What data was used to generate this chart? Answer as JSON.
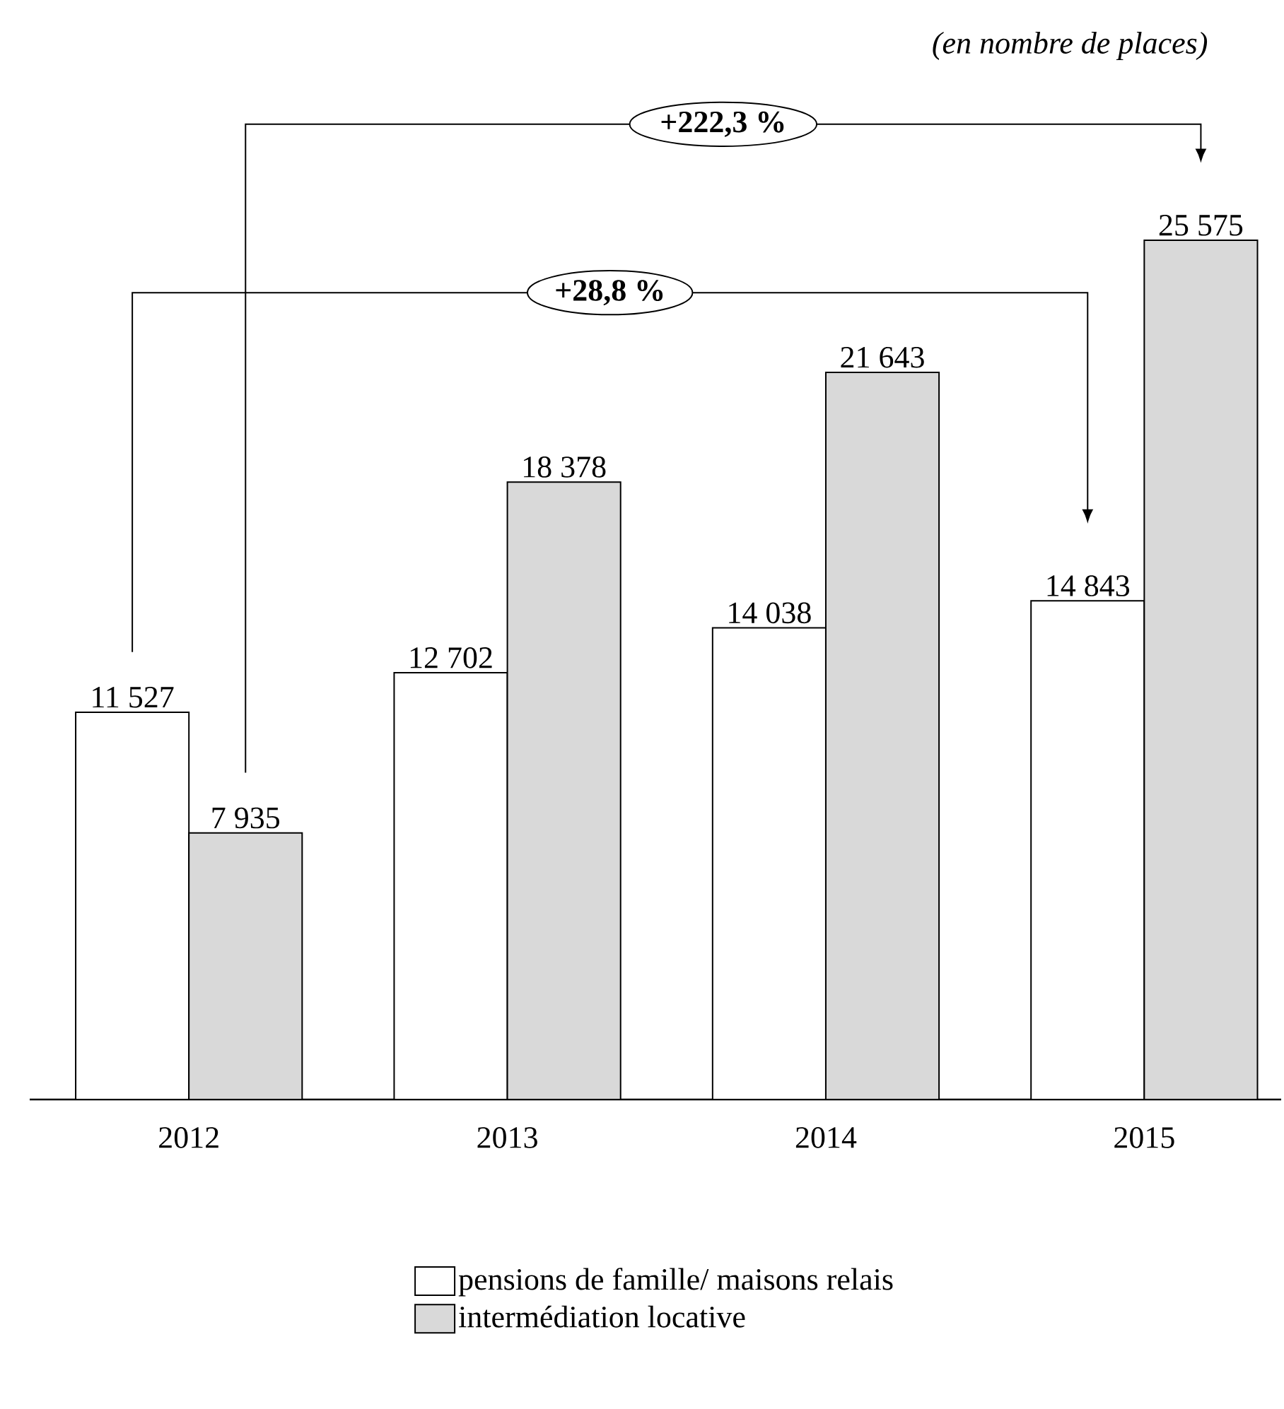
{
  "chart_data": {
    "type": "bar",
    "subtitle": "(en nombre de places)",
    "categories": [
      "2012",
      "2013",
      "2014",
      "2015"
    ],
    "series": [
      {
        "name": "pensions de famille/ maisons relais",
        "color": "#ffffff",
        "values": [
          11527,
          12702,
          14038,
          14843
        ],
        "value_labels": [
          "11 527",
          "12 702",
          "14 038",
          "14 843"
        ]
      },
      {
        "name": "intermédiation locative",
        "color": "#d9d9d9",
        "values": [
          7935,
          18378,
          21643,
          25575
        ],
        "value_labels": [
          "7 935",
          "18 378",
          "21 643",
          "25 575"
        ]
      }
    ],
    "annotations": [
      "+222,3 %",
      "+28,8 %"
    ],
    "legend": "bottom"
  }
}
